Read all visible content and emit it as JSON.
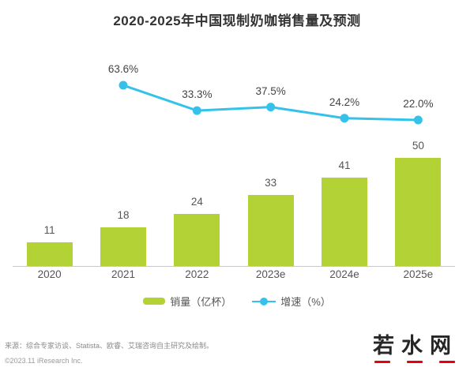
{
  "title": "2020-2025年中国现制奶咖销售量及预测",
  "chart_data": {
    "type": "bar+line",
    "title": "2020-2025年中国现制奶咖销售量及预测",
    "categories": [
      "2020",
      "2021",
      "2022",
      "2023e",
      "2024e",
      "2025e"
    ],
    "series": [
      {
        "name": "销量（亿杯）",
        "type": "bar",
        "color": "#b2d235",
        "values": [
          11,
          18,
          24,
          33,
          41,
          50
        ],
        "data_labels": [
          "11",
          "18",
          "24",
          "33",
          "41",
          "50"
        ]
      },
      {
        "name": "增速（%）",
        "type": "line",
        "color": "#35c2ea",
        "values": [
          null,
          63.6,
          33.3,
          37.5,
          24.2,
          22.0
        ],
        "data_labels": [
          "",
          "63.6%",
          "33.3%",
          "37.5%",
          "24.2%",
          "22.0%"
        ]
      }
    ],
    "ylabel": "",
    "xlabel": "",
    "grid": false,
    "legend_position": "bottom",
    "bar_axis_range": [
      0,
      55
    ],
    "line_axis_range": [
      0,
      70
    ]
  },
  "legend": {
    "bar_label": "销量（亿杯）",
    "line_label": "增速（%）"
  },
  "footer": {
    "source": "来源：综合专家访谈、Statista、欧睿、艾瑞咨询自主研究及绘制。",
    "copyright": "©2023.11 iResearch Inc."
  },
  "logo": {
    "text": "若水网"
  },
  "colors": {
    "bar": "#b2d235",
    "line": "#35c2ea",
    "axis": "#c9c9c9",
    "title": "#333333",
    "label": "#555555",
    "logo_accent": "#e60012"
  }
}
